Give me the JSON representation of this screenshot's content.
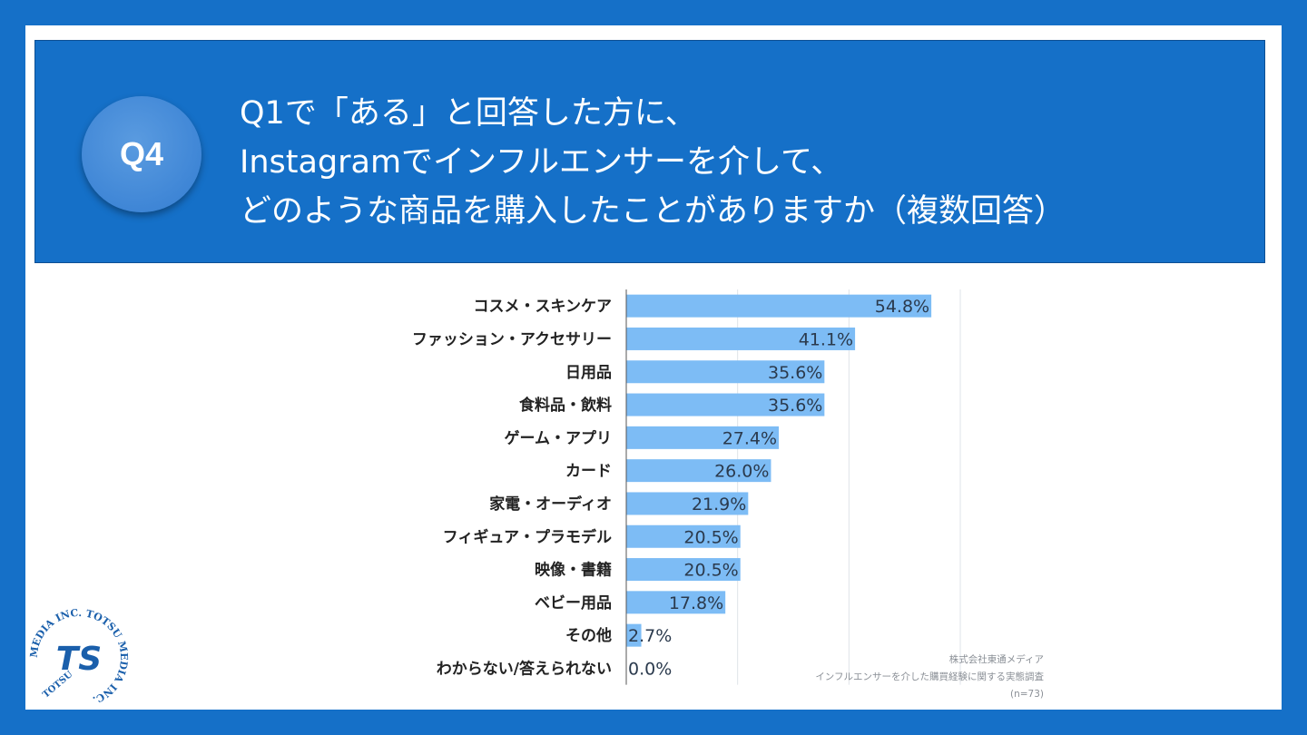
{
  "header": {
    "badge": "Q4",
    "question_lines": [
      "Q1で「ある」と回答した方に、",
      "Instagramでインフルエンサーを介して、",
      "どのような商品を購入したことがありますか（複数回答）"
    ]
  },
  "chart_data": {
    "type": "bar",
    "orientation": "horizontal",
    "categories": [
      "コスメ・スキンケア",
      "ファッション・アクセサリー",
      "日用品",
      "食料品・飲料",
      "ゲーム・アプリ",
      "カード",
      "家電・オーディオ",
      "フィギュア・プラモデル",
      "映像・書籍",
      "ベビー用品",
      "その他",
      "わからない/答えられない"
    ],
    "values": [
      54.8,
      41.1,
      35.6,
      35.6,
      27.4,
      26.0,
      21.9,
      20.5,
      20.5,
      17.8,
      2.7,
      0.0
    ],
    "value_labels": [
      "54.8%",
      "41.1%",
      "35.6%",
      "35.6%",
      "27.4%",
      "26.0%",
      "21.9%",
      "20.5%",
      "20.5%",
      "17.8%",
      "2.7%",
      "0.0%"
    ],
    "xlim": [
      0,
      60
    ],
    "grid": true,
    "bar_color": "#7dbcf5"
  },
  "source": {
    "company": "株式会社東通メディア",
    "survey": "インフルエンサーを介した購買経験に関する実態調査",
    "sample": "(n=73)"
  },
  "logo": {
    "text_top": "MEDIA INC. TOTSU MEDIA INC.",
    "text_bottom": "TOTSU",
    "mark": "TS"
  },
  "colors": {
    "background": "#1570c8",
    "panel": "#ffffff",
    "header": "#1570c8",
    "badge": "#4a8fdb"
  }
}
